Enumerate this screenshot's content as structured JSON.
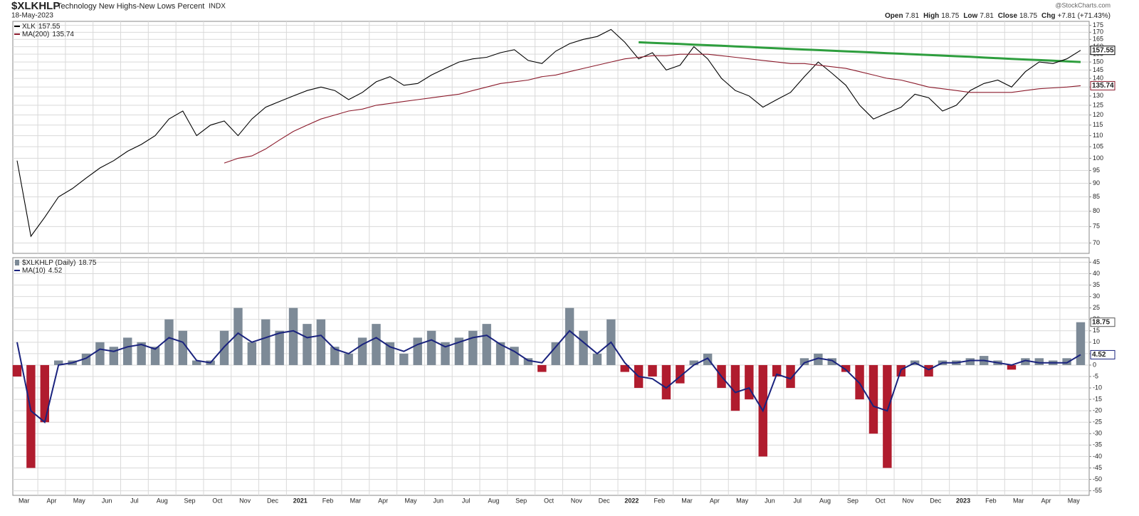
{
  "header": {
    "symbol": "$XLKHLP",
    "description": "Technology New Highs-New Lows Percent",
    "exchange": "INDX",
    "date": "18-May-2023",
    "watermark": "@StockCharts.com",
    "quote": [
      {
        "label": "Open",
        "value": "7.81"
      },
      {
        "label": "High",
        "value": "18.75"
      },
      {
        "label": "Low",
        "value": "7.81"
      },
      {
        "label": "Close",
        "value": "18.75"
      },
      {
        "label": "Chg",
        "value": "+7.81 (+71.43%)"
      }
    ]
  },
  "chart_data": [
    {
      "type": "line",
      "log_scale": true,
      "grid": true,
      "ylim": [
        67,
        178
      ],
      "yticks": [
        70,
        75,
        80,
        85,
        90,
        95,
        100,
        105,
        110,
        115,
        120,
        125,
        130,
        135,
        140,
        145,
        150,
        155,
        160,
        165,
        170,
        175
      ],
      "series": [
        {
          "name": "XLK",
          "color": "#000000",
          "values": [
            99,
            72,
            78,
            85,
            88,
            92,
            96,
            99,
            103,
            106,
            110,
            118,
            122,
            110,
            115,
            117,
            110,
            118,
            124,
            127,
            130,
            133,
            135,
            133,
            128,
            132,
            138,
            141,
            136,
            137,
            142,
            146,
            150,
            152,
            153,
            156,
            158,
            151,
            149,
            157,
            162,
            165,
            167,
            172,
            163,
            152,
            156,
            145,
            148,
            160,
            152,
            140,
            133,
            130,
            124,
            128,
            132,
            141,
            150,
            143,
            136,
            125,
            118,
            121,
            124,
            131,
            129,
            122,
            125,
            133,
            137,
            139,
            135,
            144,
            150,
            149,
            152,
            157.55
          ]
        },
        {
          "name": "MA(200)",
          "color": "#8b1a2b",
          "values": [
            null,
            null,
            null,
            null,
            null,
            null,
            null,
            null,
            null,
            null,
            null,
            null,
            null,
            null,
            null,
            98,
            100,
            101,
            104,
            108,
            112,
            115,
            118,
            120,
            122,
            123,
            125,
            126,
            127,
            128,
            129,
            130,
            131,
            133,
            135,
            137,
            138,
            139,
            141,
            142,
            144,
            146,
            148,
            150,
            152,
            153,
            154,
            154,
            155,
            155,
            155,
            154,
            153,
            152,
            151,
            150,
            149,
            149,
            148,
            147,
            146,
            144,
            142,
            140,
            139,
            137,
            135,
            134,
            133,
            132,
            132,
            132,
            132,
            133,
            134,
            134.5,
            135,
            135.74
          ]
        }
      ],
      "trendline": {
        "color": "#2e9e3e",
        "values": [
          null,
          null,
          null,
          null,
          null,
          null,
          null,
          null,
          null,
          null,
          null,
          null,
          null,
          null,
          null,
          null,
          null,
          null,
          null,
          null,
          null,
          null,
          null,
          null,
          null,
          null,
          null,
          null,
          null,
          null,
          null,
          null,
          null,
          null,
          null,
          null,
          null,
          null,
          null,
          null,
          null,
          null,
          null,
          null,
          null,
          163,
          162.6,
          162.2,
          161.8,
          161.4,
          161.0,
          160.6,
          160.2,
          159.8,
          159.3,
          158.9,
          158.5,
          158.1,
          157.7,
          157.3,
          156.9,
          156.5,
          156.1,
          155.7,
          155.3,
          154.9,
          154.5,
          154.1,
          153.7,
          153.3,
          152.8,
          152.4,
          152.0,
          151.6,
          151.2,
          150.8,
          150.4,
          150.0
        ]
      }
    },
    {
      "type": "bar",
      "grid": true,
      "ylim": [
        -57,
        47
      ],
      "yticks": [
        -55,
        -50,
        -45,
        -40,
        -35,
        -30,
        -25,
        -20,
        -15,
        -10,
        -5,
        0,
        5,
        10,
        15,
        20,
        25,
        30,
        35,
        40,
        45
      ],
      "categories": [
        "Mar",
        null,
        "Apr",
        null,
        "May",
        null,
        "Jun",
        null,
        "Jul",
        null,
        "Aug",
        null,
        "Sep",
        null,
        "Oct",
        null,
        "Nov",
        null,
        "Dec",
        null,
        "2021",
        null,
        "Feb",
        null,
        "Mar",
        null,
        "Apr",
        null,
        "May",
        null,
        "Jun",
        null,
        "Jul",
        null,
        "Aug",
        null,
        "Sep",
        null,
        "Oct",
        null,
        "Nov",
        null,
        "Dec",
        null,
        "2022",
        null,
        "Feb",
        null,
        "Mar",
        null,
        "Apr",
        null,
        "May",
        null,
        "Jun",
        null,
        "Jul",
        null,
        "Aug",
        null,
        "Sep",
        null,
        "Oct",
        null,
        "Nov",
        null,
        "Dec",
        null,
        "2023",
        null,
        "Feb",
        null,
        "Mar",
        null,
        "Apr",
        null,
        "May",
        null
      ],
      "series": [
        {
          "name": "$XLKHLP (Daily)",
          "type": "bar",
          "color": "#7d8a97",
          "negative_color": "#b01c2e",
          "values": [
            -5,
            -45,
            -25,
            2,
            2,
            5,
            10,
            8,
            12,
            10,
            8,
            20,
            15,
            2,
            2,
            15,
            25,
            10,
            20,
            15,
            25,
            18,
            20,
            8,
            5,
            12,
            18,
            10,
            5,
            12,
            15,
            10,
            12,
            15,
            18,
            10,
            8,
            3,
            -3,
            10,
            25,
            15,
            5,
            20,
            -3,
            -10,
            -5,
            -15,
            -8,
            2,
            5,
            -10,
            -20,
            -15,
            -40,
            -5,
            -10,
            3,
            5,
            3,
            -3,
            -15,
            -30,
            -45,
            -5,
            2,
            -5,
            2,
            2,
            3,
            4,
            2,
            -2,
            3,
            3,
            2,
            3,
            18.75
          ]
        },
        {
          "name": "MA(10)",
          "type": "line",
          "color": "#1a237e",
          "values": [
            10,
            -20,
            -25,
            0,
            1,
            3,
            7,
            6,
            8,
            9,
            7,
            12,
            10,
            2,
            1,
            8,
            14,
            10,
            12,
            14,
            15,
            12,
            13,
            7,
            5,
            9,
            12,
            8,
            6,
            9,
            11,
            8,
            10,
            12,
            13,
            9,
            6,
            2,
            1,
            8,
            15,
            10,
            5,
            10,
            1,
            -5,
            -6,
            -10,
            -5,
            0,
            3,
            -5,
            -12,
            -10,
            -20,
            -4,
            -6,
            1,
            3,
            2,
            -2,
            -8,
            -18,
            -20,
            -2,
            1,
            -2,
            1,
            1,
            2,
            2,
            1,
            0,
            2,
            1,
            1,
            1,
            4.52
          ]
        }
      ]
    }
  ]
}
